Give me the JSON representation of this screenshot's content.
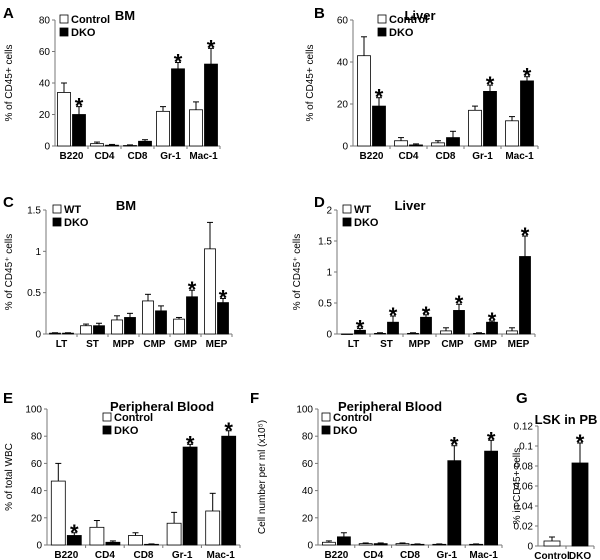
{
  "chart_data": [
    {
      "panel": "A",
      "type": "bar",
      "title": "BM",
      "xlabel": "",
      "ylabel": "% of CD45+ cells",
      "ylim": [
        0,
        80
      ],
      "yticks": [
        0,
        20,
        40,
        60,
        80
      ],
      "categories": [
        "B220",
        "CD4",
        "CD8",
        "Gr-1",
        "Mac-1"
      ],
      "series": [
        {
          "name": "Control",
          "color": "#ffffff",
          "values": [
            34,
            1.5,
            0.3,
            22,
            23
          ],
          "errors": [
            6,
            1,
            0.4,
            3,
            5
          ]
        },
        {
          "name": "DKO",
          "color": "#000000",
          "values": [
            20,
            0.5,
            3,
            49,
            52
          ],
          "errors": [
            5,
            0.5,
            1,
            4,
            10
          ]
        }
      ],
      "significance": [
        [
          1,
          0
        ],
        [
          1,
          3
        ],
        [
          1,
          4
        ]
      ],
      "legend_position": "top-left"
    },
    {
      "panel": "B",
      "type": "bar",
      "title": "Liver",
      "xlabel": "",
      "ylabel": "% of CD45+ cells",
      "ylim": [
        0,
        60
      ],
      "yticks": [
        0,
        20,
        40,
        60
      ],
      "categories": [
        "B220",
        "CD4",
        "CD8",
        "Gr-1",
        "Mac-1"
      ],
      "series": [
        {
          "name": "Control",
          "color": "#ffffff",
          "values": [
            43,
            2.5,
            1.5,
            17,
            12
          ],
          "errors": [
            9,
            1.5,
            1,
            2,
            2
          ]
        },
        {
          "name": "DKO",
          "color": "#000000",
          "values": [
            19,
            0.5,
            4,
            26,
            31
          ],
          "errors": [
            4,
            0.5,
            3,
            3,
            2
          ]
        }
      ],
      "significance": [
        [
          1,
          0
        ],
        [
          1,
          3
        ],
        [
          1,
          4
        ]
      ],
      "legend_position": "top-right"
    },
    {
      "panel": "C",
      "type": "bar",
      "title": "BM",
      "xlabel": "",
      "ylabel": "% of CD45⁺ cells",
      "ylim": [
        0,
        1.5
      ],
      "yticks": [
        0,
        0.5,
        1,
        1.5
      ],
      "categories": [
        "LT",
        "ST",
        "MPP",
        "CMP",
        "GMP",
        "MEP"
      ],
      "series": [
        {
          "name": "WT",
          "color": "#ffffff",
          "values": [
            0.01,
            0.1,
            0.17,
            0.4,
            0.18,
            1.03
          ],
          "errors": [
            0.005,
            0.02,
            0.05,
            0.08,
            0.02,
            0.32
          ]
        },
        {
          "name": "DKO",
          "color": "#000000",
          "values": [
            0.01,
            0.1,
            0.2,
            0.28,
            0.45,
            0.38
          ],
          "errors": [
            0.005,
            0.03,
            0.05,
            0.06,
            0.08,
            0.05
          ]
        }
      ],
      "significance": [
        [
          1,
          4
        ],
        [
          1,
          5
        ]
      ],
      "legend_position": "top-left"
    },
    {
      "panel": "D",
      "type": "bar",
      "title": "Liver",
      "xlabel": "",
      "ylabel": "% of CD45⁺ cells",
      "ylim": [
        0,
        2
      ],
      "yticks": [
        0,
        0.5,
        1,
        1.5,
        2
      ],
      "categories": [
        "LT",
        "ST",
        "MPP",
        "CMP",
        "GMP",
        "MEP"
      ],
      "series": [
        {
          "name": "WT",
          "color": "#ffffff",
          "values": [
            0,
            0.01,
            0.01,
            0.05,
            0.01,
            0.05
          ],
          "errors": [
            0,
            0.01,
            0.01,
            0.05,
            0.01,
            0.05
          ]
        },
        {
          "name": "DKO",
          "color": "#000000",
          "values": [
            0.06,
            0.19,
            0.27,
            0.38,
            0.19,
            1.25
          ],
          "errors": [
            0.03,
            0.1,
            0.04,
            0.1,
            0.02,
            0.33
          ]
        }
      ],
      "significance": [
        [
          1,
          0
        ],
        [
          1,
          1
        ],
        [
          1,
          2
        ],
        [
          1,
          3
        ],
        [
          1,
          4
        ],
        [
          1,
          5
        ]
      ],
      "legend_position": "top-left"
    },
    {
      "panel": "E",
      "type": "bar",
      "title": "Peripheral Blood",
      "xlabel": "",
      "ylabel": "% of total WBC",
      "ylim": [
        0,
        100
      ],
      "yticks": [
        0,
        20,
        40,
        60,
        80,
        100
      ],
      "categories": [
        "B220",
        "CD4",
        "CD8",
        "Gr-1",
        "Mac-1"
      ],
      "series": [
        {
          "name": "Control",
          "color": "#ffffff",
          "values": [
            47,
            13,
            7,
            16,
            25
          ],
          "errors": [
            13,
            5,
            2,
            8,
            13
          ]
        },
        {
          "name": "DKO",
          "color": "#000000",
          "values": [
            7,
            2,
            0.5,
            72,
            80
          ],
          "errors": [
            2,
            1,
            0.3,
            2,
            4
          ]
        }
      ],
      "significance": [
        [
          1,
          0
        ],
        [
          1,
          3
        ],
        [
          1,
          4
        ]
      ],
      "legend_position": "top-right"
    },
    {
      "panel": "F",
      "type": "bar",
      "title": "Peripheral Blood",
      "xlabel": "",
      "ylabel": "Cell number per ml (x10⁵)",
      "ylim": [
        0,
        100
      ],
      "yticks": [
        0,
        20,
        40,
        60,
        80,
        100
      ],
      "categories": [
        "B220",
        "CD4",
        "CD8",
        "Gr-1",
        "Mac-1"
      ],
      "series": [
        {
          "name": "Control",
          "color": "#ffffff",
          "values": [
            2,
            1,
            1,
            0.5,
            0.5
          ],
          "errors": [
            1,
            0.5,
            0.5,
            0.3,
            0.3
          ]
        },
        {
          "name": "DKO",
          "color": "#000000",
          "values": [
            6,
            1,
            0.5,
            62,
            69
          ],
          "errors": [
            3,
            0.5,
            0.3,
            11,
            8
          ]
        }
      ],
      "significance": [
        [
          1,
          3
        ],
        [
          1,
          4
        ]
      ],
      "legend_position": "top-left"
    },
    {
      "panel": "G",
      "type": "bar",
      "title": "LSK in PB",
      "xlabel": "",
      "ylabel": "% in CD45+ cells",
      "ylim": [
        0,
        0.12
      ],
      "yticks": [
        0,
        0.02,
        0.04,
        0.06,
        0.08,
        0.1,
        0.12
      ],
      "categories": [
        "Control",
        "DKO"
      ],
      "series": [
        {
          "name": "",
          "color": "#ffffff",
          "values": [
            0.005,
            null
          ],
          "errors": [
            0.004,
            null
          ]
        },
        {
          "name": "",
          "color": "#000000",
          "values": [
            null,
            0.083
          ],
          "errors": [
            null,
            0.02
          ]
        }
      ],
      "significance": [
        [
          1,
          1
        ]
      ],
      "legend_position": "none"
    }
  ]
}
